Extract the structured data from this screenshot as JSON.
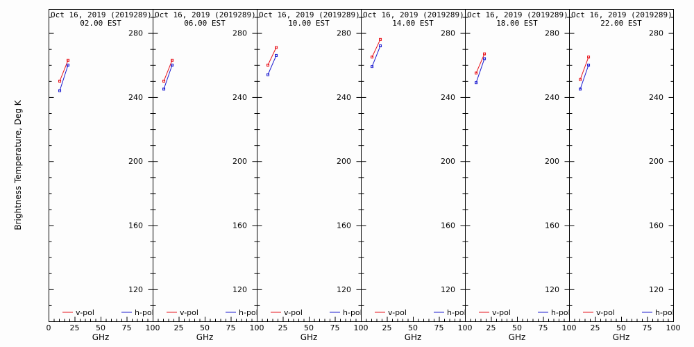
{
  "chart_data": {
    "type": "line",
    "ylabel": "Brightness Temperature, Deg K",
    "ylim": [
      100,
      295
    ],
    "yticks": [
      120,
      160,
      200,
      240,
      280
    ],
    "xlim": [
      0,
      100
    ],
    "xticks": [
      0,
      25,
      50,
      75,
      100
    ],
    "xlabel": "GHz",
    "legend": {
      "location": "bottom",
      "entries": [
        "v-pol",
        "h-pol"
      ]
    },
    "series_colors": {
      "v-pol": "#e8131b",
      "h-pol": "#1a1ad0"
    },
    "panels": [
      {
        "title": "Oct 16, 2019 (2019289)",
        "subtitle": "02.00 EST",
        "series": [
          {
            "name": "v-pol",
            "x": [
              10.7,
              18.7
            ],
            "y": [
              250,
              263
            ]
          },
          {
            "name": "h-pol",
            "x": [
              10.7,
              18.7
            ],
            "y": [
              244,
              260
            ]
          }
        ]
      },
      {
        "title": "Oct 16, 2019 (2019289)",
        "subtitle": "06.00 EST",
        "series": [
          {
            "name": "v-pol",
            "x": [
              10.7,
              18.7
            ],
            "y": [
              250,
              263
            ]
          },
          {
            "name": "h-pol",
            "x": [
              10.7,
              18.7
            ],
            "y": [
              245,
              260
            ]
          }
        ]
      },
      {
        "title": "Oct 16, 2019 (2019289)",
        "subtitle": "10.00 EST",
        "series": [
          {
            "name": "v-pol",
            "x": [
              10.7,
              18.7
            ],
            "y": [
              260,
              271
            ]
          },
          {
            "name": "h-pol",
            "x": [
              10.7,
              18.7
            ],
            "y": [
              254,
              266
            ]
          }
        ]
      },
      {
        "title": "Oct 16, 2019 (2019289)",
        "subtitle": "14.00 EST",
        "series": [
          {
            "name": "v-pol",
            "x": [
              10.7,
              18.7
            ],
            "y": [
              265,
              276
            ]
          },
          {
            "name": "h-pol",
            "x": [
              10.7,
              18.7
            ],
            "y": [
              259,
              272
            ]
          }
        ]
      },
      {
        "title": "Oct 16, 2019 (2019289)",
        "subtitle": "18.00 EST",
        "series": [
          {
            "name": "v-pol",
            "x": [
              10.7,
              18.7
            ],
            "y": [
              255,
              267
            ]
          },
          {
            "name": "h-pol",
            "x": [
              10.7,
              18.7
            ],
            "y": [
              249,
              264
            ]
          }
        ]
      },
      {
        "title": "Oct 16, 2019 (2019289)",
        "subtitle": "22.00 EST",
        "series": [
          {
            "name": "v-pol",
            "x": [
              10.7,
              18.7
            ],
            "y": [
              251,
              265
            ]
          },
          {
            "name": "h-pol",
            "x": [
              10.7,
              18.7
            ],
            "y": [
              245,
              260
            ]
          }
        ]
      }
    ]
  }
}
